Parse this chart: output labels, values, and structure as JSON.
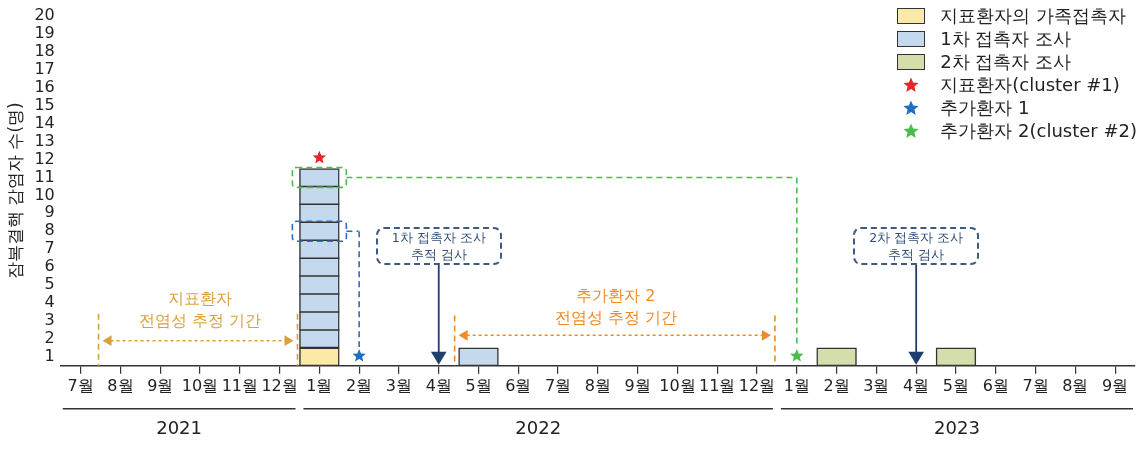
{
  "chart_data": {
    "type": "bar",
    "ylabel": "잠복결핵 감염자 수(명)",
    "categories": [
      "7월",
      "8월",
      "9월",
      "10월",
      "11월",
      "12월",
      "1월",
      "2월",
      "3월",
      "4월",
      "5월",
      "6월",
      "7월",
      "8월",
      "9월",
      "10월",
      "11월",
      "12월",
      "1월",
      "2월",
      "3월",
      "4월",
      "5월",
      "6월",
      "7월",
      "8월",
      "9월"
    ],
    "stacked": true,
    "ylim": [
      0,
      19.5
    ],
    "yticks": [
      {
        "value": 0.5,
        "label": "1"
      },
      {
        "value": 1.5,
        "label": "2"
      },
      {
        "value": 2.5,
        "label": "3"
      },
      {
        "value": 3.5,
        "label": "4"
      },
      {
        "value": 4.5,
        "label": "5"
      },
      {
        "value": 5.5,
        "label": "6"
      },
      {
        "value": 6.5,
        "label": "7"
      },
      {
        "value": 7.5,
        "label": "8"
      },
      {
        "value": 8.5,
        "label": "9"
      },
      {
        "value": 9.5,
        "label": "10"
      },
      {
        "value": 10.5,
        "label": "11"
      },
      {
        "value": 11.5,
        "label": "12"
      },
      {
        "value": 12.5,
        "label": "13"
      },
      {
        "value": 13.5,
        "label": "14"
      },
      {
        "value": 14.5,
        "label": "15"
      },
      {
        "value": 15.5,
        "label": "16"
      },
      {
        "value": 16.5,
        "label": "17"
      },
      {
        "value": 17.5,
        "label": "18"
      },
      {
        "value": 18.5,
        "label": "19"
      },
      {
        "value": 19.5,
        "label": "20"
      }
    ],
    "legend": "top right",
    "grid": false,
    "series": [
      {
        "name": "지표환자의 가족접촉자",
        "color": "#fde9a6",
        "values": [
          null,
          null,
          null,
          null,
          null,
          null,
          1,
          null,
          null,
          null,
          null,
          null,
          null,
          null,
          null,
          null,
          null,
          null,
          null,
          null,
          null,
          null,
          null,
          null,
          null,
          null,
          null
        ]
      },
      {
        "name": "1차 접촉자 조사",
        "color": "#c5d9ee",
        "values": [
          null,
          null,
          null,
          null,
          null,
          null,
          10,
          null,
          null,
          null,
          1,
          null,
          null,
          null,
          null,
          null,
          null,
          null,
          null,
          null,
          null,
          null,
          null,
          null,
          null,
          null,
          null
        ]
      },
      {
        "name": "2차 접촉자 조사",
        "color": "#d4deaa",
        "values": [
          null,
          null,
          null,
          null,
          null,
          null,
          null,
          null,
          null,
          null,
          null,
          null,
          null,
          null,
          null,
          null,
          null,
          null,
          null,
          1,
          null,
          null,
          1,
          null,
          null,
          null,
          null
        ]
      },
      {
        "name": "지표환자(cluster #1)",
        "type": "scatter",
        "marker": "star",
        "color": "#e8262a",
        "values": [
          null,
          null,
          null,
          null,
          null,
          null,
          11.6,
          null,
          null,
          null,
          null,
          null,
          null,
          null,
          null,
          null,
          null,
          null,
          null,
          null,
          null,
          null,
          null,
          null,
          null,
          null,
          null
        ]
      },
      {
        "name": "추가환자 1",
        "type": "scatter",
        "marker": "star",
        "color": "#1f6fc0",
        "values": [
          null,
          null,
          null,
          null,
          null,
          null,
          null,
          0.55,
          null,
          null,
          null,
          null,
          null,
          null,
          null,
          null,
          null,
          null,
          null,
          null,
          null,
          null,
          null,
          null,
          null,
          null,
          null
        ]
      },
      {
        "name": "추가환자 2(cluster #2)",
        "type": "scatter",
        "marker": "star",
        "color": "#4cbb4c",
        "values": [
          null,
          null,
          null,
          null,
          null,
          null,
          null,
          null,
          null,
          null,
          null,
          null,
          null,
          null,
          null,
          null,
          null,
          null,
          0.55,
          null,
          null,
          null,
          null,
          null,
          null,
          null,
          null
        ]
      }
    ],
    "annotations": [
      "지표환자\n전염성 추정 기간",
      "추가환자 2\n전염성 추정 기간",
      "1차 접촉자 조사\n추적 검사",
      "2차 접촉자 조사\n추적 검사",
      "2021",
      "2022",
      "2023"
    ]
  }
}
